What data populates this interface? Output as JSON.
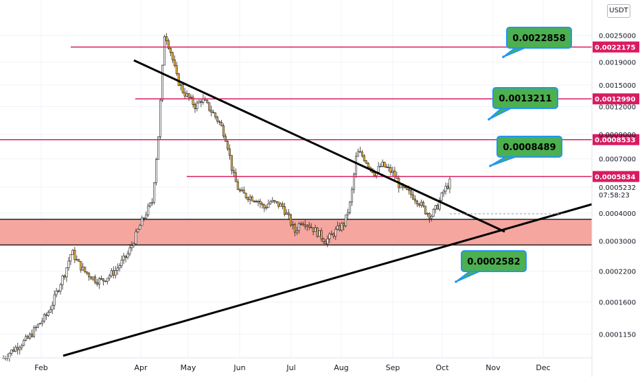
{
  "chart_data": {
    "type": "candlestick",
    "currency": "USDT",
    "y_scale": "log",
    "ylim": [
      9e-05,
      0.0036
    ],
    "price_axis_labels": [
      "0.0025000",
      "0.0019000",
      "0.0015000",
      "0.0012000",
      "0.0009000",
      "0.0007000",
      "0.0005232",
      "0.0004000",
      "0.0003000",
      "0.0002200",
      "0.0001600",
      "0.0001150"
    ],
    "price_axis_values": [
      0.0025,
      0.0019,
      0.0015,
      0.0012,
      0.0009,
      0.0007,
      0.0005232,
      0.0004,
      0.0003,
      0.00022,
      0.00016,
      0.000115
    ],
    "current_price_label": "0.0005232",
    "countdown": "07:58:23",
    "months": [
      "Feb",
      "Apr",
      "May",
      "Jun",
      "Jul",
      "Aug",
      "Sep",
      "Oct",
      "Nov",
      "Dec"
    ],
    "horizontal_levels": [
      {
        "value": 0.0022175,
        "label": "0.0022175"
      },
      {
        "value": 0.001299,
        "label": "0.0012990"
      },
      {
        "value": 0.0008533,
        "label": "0.0008533"
      },
      {
        "value": 0.0005834,
        "label": "0.0005834"
      }
    ],
    "support_zone": {
      "low": 0.000288,
      "high": 0.000375
    },
    "targets": [
      "0.0022858",
      "0.0013211",
      "0.0008489",
      "0.0002582"
    ],
    "candles_close": [
      9e-05,
      9.5e-05,
      0.0001,
      0.000105,
      0.00011,
      0.00012,
      0.00013,
      0.00014,
      0.00016,
      0.00019,
      0.00022,
      0.00027,
      0.00024,
      0.00022,
      0.00021,
      0.0002,
      0.0002,
      0.00021,
      0.00022,
      0.00024,
      0.00026,
      0.0003,
      0.00035,
      0.0004,
      0.00045,
      0.0009,
      0.0026,
      0.0021,
      0.0016,
      0.0014,
      0.0013,
      0.0012,
      0.0013,
      0.0012,
      0.0011,
      0.001,
      0.00085,
      0.0006,
      0.0005,
      0.00048,
      0.00047,
      0.00046,
      0.00042,
      0.00045,
      0.00044,
      0.00043,
      0.00038,
      0.00033,
      0.00037,
      0.00036,
      0.00034,
      0.00032,
      0.0003,
      0.00032,
      0.00034,
      0.00036,
      0.00045,
      0.00075,
      0.00072,
      0.00065,
      0.0006,
      0.00066,
      0.00063,
      0.0006,
      0.00052,
      0.0005,
      0.00048,
      0.00045,
      0.00041,
      0.00039,
      0.00043,
      0.0005,
      0.00055
    ]
  }
}
